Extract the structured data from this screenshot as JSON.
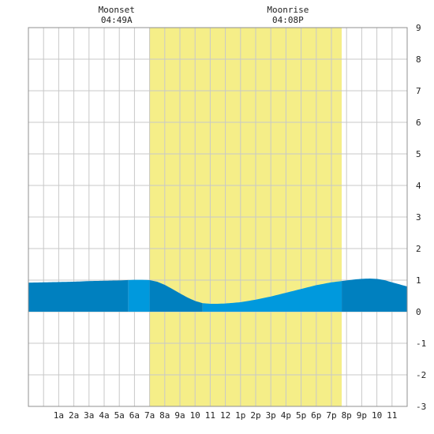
{
  "chart_data": {
    "type": "area",
    "annotations": [
      {
        "label": "Moonset",
        "time": "04:49A",
        "hour": 4.82
      },
      {
        "label": "Moonrise",
        "time": "04:08P",
        "hour": 16.13
      }
    ],
    "daylight": {
      "start_hour": 6.98,
      "end_hour": 19.68
    },
    "x_ticks": [
      "1a",
      "2a",
      "3a",
      "4a",
      "5a",
      "6a",
      "7a",
      "8a",
      "9a",
      "10",
      "11",
      "12",
      "1p",
      "2p",
      "3p",
      "4p",
      "5p",
      "6p",
      "7p",
      "8p",
      "9p",
      "10",
      "11"
    ],
    "xlim": [
      -1,
      24
    ],
    "ylim": [
      -3,
      9
    ],
    "y_ticks": [
      -3,
      -2,
      -1,
      0,
      1,
      2,
      3,
      4,
      5,
      6,
      7,
      8,
      9
    ],
    "grid": true,
    "tide_series": {
      "x": [
        -1,
        0,
        1,
        2,
        3,
        4,
        5,
        5.5,
        6,
        6.5,
        7,
        7.5,
        8,
        8.5,
        9,
        9.5,
        10,
        10.5,
        11,
        11.5,
        12,
        13,
        14,
        15,
        16,
        17,
        18,
        19,
        20,
        20.5,
        21,
        21.5,
        22,
        22.5,
        23,
        24
      ],
      "y": [
        0.92,
        0.93,
        0.94,
        0.95,
        0.97,
        0.98,
        0.99,
        1.0,
        1.01,
        1.01,
        1.0,
        0.95,
        0.85,
        0.72,
        0.58,
        0.45,
        0.34,
        0.27,
        0.25,
        0.25,
        0.26,
        0.3,
        0.38,
        0.48,
        0.6,
        0.72,
        0.84,
        0.93,
        0.99,
        1.02,
        1.04,
        1.05,
        1.04,
        1.0,
        0.93,
        0.8
      ]
    },
    "shade_boundaries": [
      5.6,
      7.0,
      10.5,
      19.68
    ]
  },
  "colors": {
    "daylight": "#f5ee88",
    "tide_night": "#0080bf",
    "tide_day": "#0099dd",
    "grid": "#c8c8c8",
    "frame": "#909090"
  }
}
